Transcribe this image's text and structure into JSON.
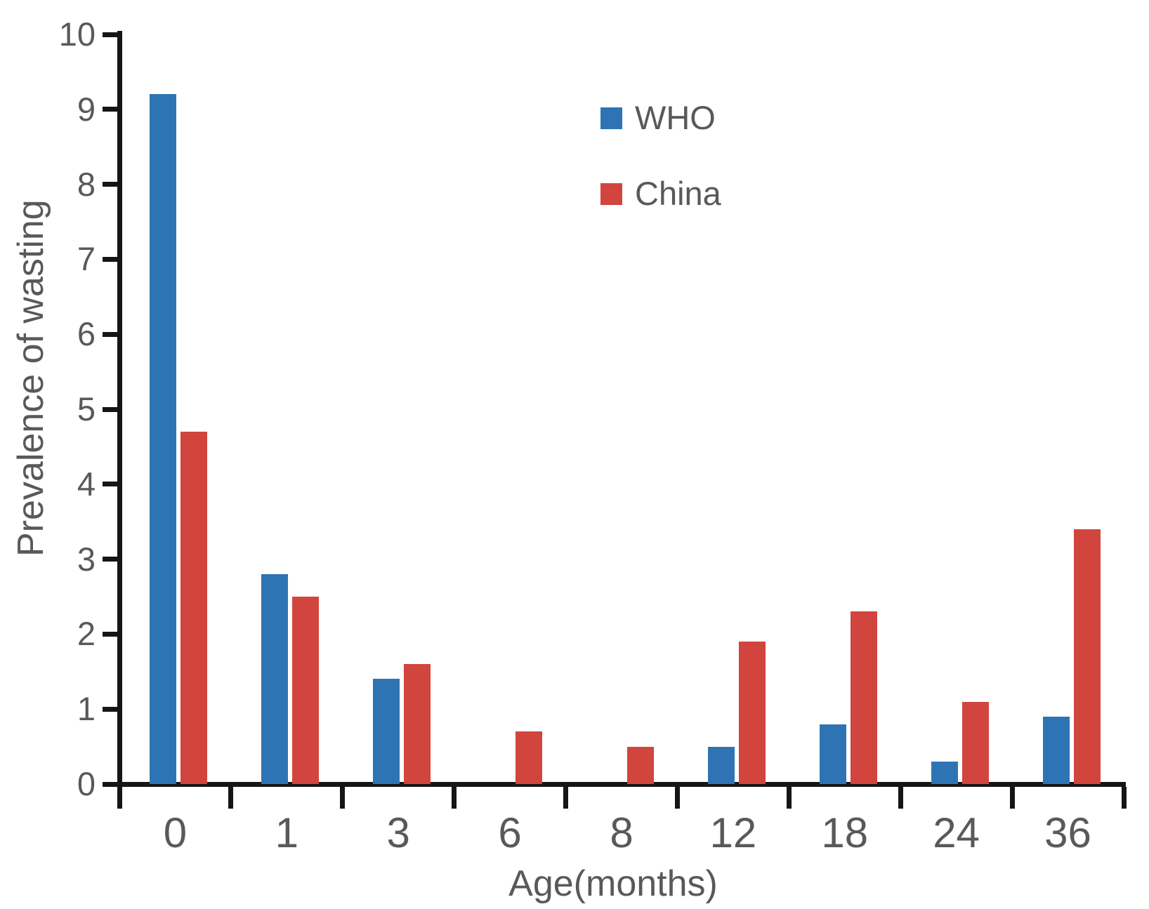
{
  "chart_data": {
    "type": "bar",
    "title": "",
    "xlabel": "Age(months)",
    "ylabel": "Prevalence of wasting",
    "categories": [
      "0",
      "1",
      "3",
      "6",
      "8",
      "12",
      "18",
      "24",
      "36"
    ],
    "series": [
      {
        "name": "WHO",
        "color": "#2e74b5",
        "values": [
          9.2,
          2.8,
          1.4,
          0,
          0,
          0.5,
          0.8,
          0.3,
          0.9
        ]
      },
      {
        "name": "China",
        "color": "#d2443e",
        "values": [
          4.7,
          2.5,
          1.6,
          0.7,
          0.5,
          1.9,
          2.3,
          1.1,
          3.4
        ]
      }
    ],
    "ylim": [
      0,
      10
    ],
    "yticks": [
      0,
      1,
      2,
      3,
      4,
      5,
      6,
      7,
      8,
      9,
      10
    ],
    "grid": false,
    "legend_position": "upper-center",
    "axis_color": "#151515",
    "tick_label_color": "#595959"
  }
}
